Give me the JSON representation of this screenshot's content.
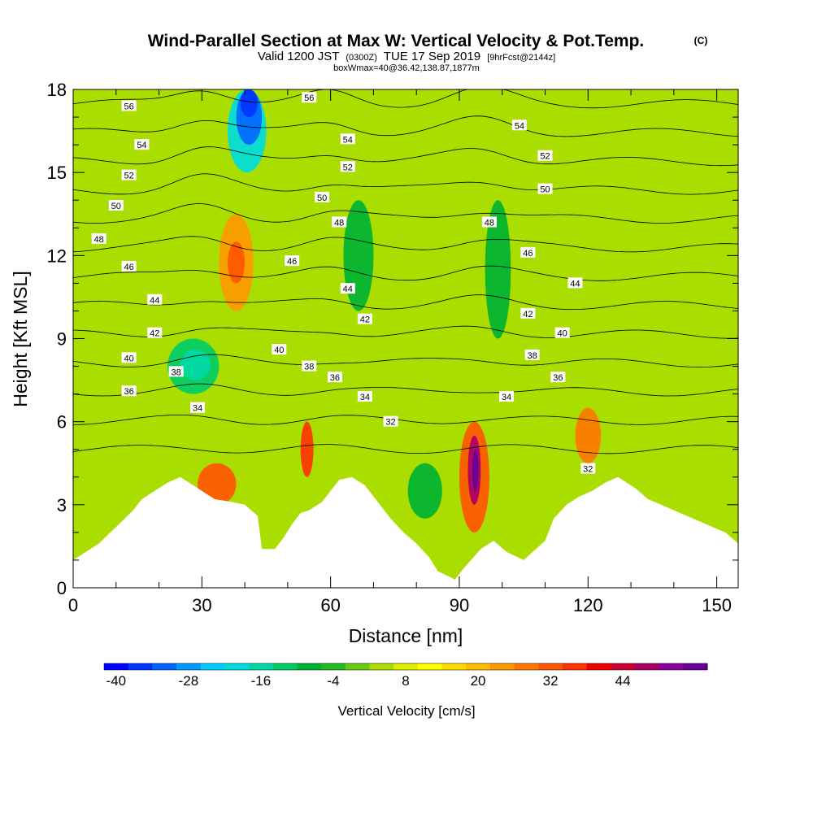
{
  "chart_data": {
    "type": "heatmap",
    "title": "Wind-Parallel Section at Max W: Vertical Velocity & Pot.Temp.",
    "title_tag": "(C)",
    "subtitle": {
      "valid_prefix": "Valid 1200 JST",
      "utc": "(0300Z)",
      "date": "TUE 17 Sep 2019",
      "forecast": "[9hrFcst@2144z]"
    },
    "subtitle2": "boxWmax=40@36.42,138.87,1877m",
    "xlabel": "Distance [nm]",
    "ylabel": "Height [Kft MSL]",
    "xlim": [
      0,
      155
    ],
    "ylim": [
      0,
      18
    ],
    "xticks": [
      0,
      30,
      60,
      90,
      120,
      150
    ],
    "xtick_labels": [
      "0",
      "30",
      "60",
      "90",
      "120",
      "150"
    ],
    "yticks": [
      0,
      3,
      6,
      9,
      12,
      15,
      18
    ],
    "ytick_labels": [
      "0",
      "3",
      "6",
      "9",
      "12",
      "15",
      "18"
    ],
    "colorbar": {
      "label": "Vertical Velocity [cm/s]",
      "tick_labels": [
        "-40",
        "-28",
        "-16",
        "-4",
        "8",
        "20",
        "32",
        "44"
      ],
      "colors": [
        "#0000ff",
        "#0033ff",
        "#0066ff",
        "#0099ff",
        "#00ccff",
        "#00dddd",
        "#00d9a6",
        "#00cc66",
        "#00b233",
        "#22bb22",
        "#66cc11",
        "#aadd00",
        "#ddee00",
        "#ffff00",
        "#ffdd00",
        "#ffbb00",
        "#ff9900",
        "#ff7700",
        "#ff5500",
        "#ff3300",
        "#ee0000",
        "#cc0033",
        "#aa0066",
        "#880099",
        "#660099"
      ]
    },
    "velocity_cells": [
      {
        "x": [
          0,
          155
        ],
        "y": [
          0,
          18
        ],
        "w": 2
      },
      {
        "x": [
          36,
          45
        ],
        "y": [
          15,
          18
        ],
        "w": -20
      },
      {
        "x": [
          38,
          44
        ],
        "y": [
          16,
          18
        ],
        "w": -30
      },
      {
        "x": [
          39,
          43
        ],
        "y": [
          17,
          18
        ],
        "w": -36
      },
      {
        "x": [
          34,
          42
        ],
        "y": [
          10,
          13.5
        ],
        "w": 18
      },
      {
        "x": [
          36,
          40
        ],
        "y": [
          11,
          12.5
        ],
        "w": 26
      },
      {
        "x": [
          22,
          34
        ],
        "y": [
          7,
          9
        ],
        "w": -14
      },
      {
        "x": [
          25,
          32
        ],
        "y": [
          7.5,
          8.6
        ],
        "w": -17
      },
      {
        "x": [
          53,
          56
        ],
        "y": [
          4,
          6
        ],
        "w": 30
      },
      {
        "x": [
          90,
          97
        ],
        "y": [
          2,
          6
        ],
        "w": 24
      },
      {
        "x": [
          92,
          95
        ],
        "y": [
          3,
          5.5
        ],
        "w": 40
      },
      {
        "x": [
          93,
          94.5
        ],
        "y": [
          3.5,
          5
        ],
        "w": 46
      },
      {
        "x": [
          117,
          123
        ],
        "y": [
          4.5,
          6.5
        ],
        "w": 22
      },
      {
        "x": [
          29,
          38
        ],
        "y": [
          3,
          4.5
        ],
        "w": 24
      },
      {
        "x": [
          78,
          86
        ],
        "y": [
          2.5,
          4.5
        ],
        "w": -10
      },
      {
        "x": [
          63,
          70
        ],
        "y": [
          10,
          14
        ],
        "w": -10
      },
      {
        "x": [
          96,
          102
        ],
        "y": [
          9,
          14
        ],
        "w": -10
      }
    ],
    "terrain_height_kft": [
      [
        0,
        1.0
      ],
      [
        3,
        1.3
      ],
      [
        6,
        1.6
      ],
      [
        8,
        1.9
      ],
      [
        10,
        2.2
      ],
      [
        12,
        2.5
      ],
      [
        14,
        2.8
      ],
      [
        16,
        3.2
      ],
      [
        19,
        3.5
      ],
      [
        22,
        3.8
      ],
      [
        25,
        4.0
      ],
      [
        29,
        3.6
      ],
      [
        33,
        3.2
      ],
      [
        37,
        3.1
      ],
      [
        40,
        3.0
      ],
      [
        43,
        2.6
      ],
      [
        44,
        1.4
      ],
      [
        47,
        1.4
      ],
      [
        49,
        1.8
      ],
      [
        51,
        2.3
      ],
      [
        53,
        2.7
      ],
      [
        55,
        2.8
      ],
      [
        58,
        3.1
      ],
      [
        60,
        3.5
      ],
      [
        62,
        3.9
      ],
      [
        65,
        4.0
      ],
      [
        68,
        3.7
      ],
      [
        71,
        3.1
      ],
      [
        74,
        2.5
      ],
      [
        77,
        2.0
      ],
      [
        80,
        1.6
      ],
      [
        83,
        1.1
      ],
      [
        85,
        0.6
      ],
      [
        89,
        0.3
      ],
      [
        91,
        0.7
      ],
      [
        95,
        1.4
      ],
      [
        98,
        1.7
      ],
      [
        101,
        1.3
      ],
      [
        105,
        1.0
      ],
      [
        110,
        1.7
      ],
      [
        112,
        2.5
      ],
      [
        115,
        3.0
      ],
      [
        118,
        3.3
      ],
      [
        121,
        3.5
      ],
      [
        124,
        3.8
      ],
      [
        127,
        4.0
      ],
      [
        131,
        3.6
      ],
      [
        134,
        3.2
      ],
      [
        137,
        3.0
      ],
      [
        140,
        2.8
      ],
      [
        143,
        2.6
      ],
      [
        146,
        2.4
      ],
      [
        149,
        2.2
      ],
      [
        152,
        2.0
      ],
      [
        155,
        1.6
      ]
    ],
    "contour_labels": [
      {
        "text": "56",
        "x": 13,
        "y": 17.4
      },
      {
        "text": "56",
        "x": 55,
        "y": 17.7
      },
      {
        "text": "54",
        "x": 16,
        "y": 16.0
      },
      {
        "text": "54",
        "x": 64,
        "y": 16.2
      },
      {
        "text": "54",
        "x": 104,
        "y": 16.7
      },
      {
        "text": "52",
        "x": 13,
        "y": 14.9
      },
      {
        "text": "52",
        "x": 64,
        "y": 15.2
      },
      {
        "text": "52",
        "x": 110,
        "y": 15.6
      },
      {
        "text": "50",
        "x": 10,
        "y": 13.8
      },
      {
        "text": "50",
        "x": 58,
        "y": 14.1
      },
      {
        "text": "50",
        "x": 110,
        "y": 14.4
      },
      {
        "text": "48",
        "x": 6,
        "y": 12.6
      },
      {
        "text": "48",
        "x": 62,
        "y": 13.2
      },
      {
        "text": "48",
        "x": 97,
        "y": 13.2
      },
      {
        "text": "46",
        "x": 13,
        "y": 11.6
      },
      {
        "text": "46",
        "x": 51,
        "y": 11.8
      },
      {
        "text": "46",
        "x": 106,
        "y": 12.1
      },
      {
        "text": "44",
        "x": 19,
        "y": 10.4
      },
      {
        "text": "44",
        "x": 64,
        "y": 10.8
      },
      {
        "text": "44",
        "x": 117,
        "y": 11.0
      },
      {
        "text": "42",
        "x": 19,
        "y": 9.2
      },
      {
        "text": "42",
        "x": 68,
        "y": 9.7
      },
      {
        "text": "42",
        "x": 106,
        "y": 9.9
      },
      {
        "text": "40",
        "x": 13,
        "y": 8.3
      },
      {
        "text": "40",
        "x": 48,
        "y": 8.6
      },
      {
        "text": "40",
        "x": 114,
        "y": 9.2
      },
      {
        "text": "38",
        "x": 24,
        "y": 7.8
      },
      {
        "text": "38",
        "x": 55,
        "y": 8.0
      },
      {
        "text": "38",
        "x": 107,
        "y": 8.4
      },
      {
        "text": "36",
        "x": 13,
        "y": 7.1
      },
      {
        "text": "36",
        "x": 61,
        "y": 7.6
      },
      {
        "text": "36",
        "x": 113,
        "y": 7.6
      },
      {
        "text": "34",
        "x": 29,
        "y": 6.5
      },
      {
        "text": "34",
        "x": 68,
        "y": 6.9
      },
      {
        "text": "34",
        "x": 101,
        "y": 6.9
      },
      {
        "text": "32",
        "x": 74,
        "y": 6.0
      },
      {
        "text": "32",
        "x": 120,
        "y": 4.3
      }
    ],
    "isentrope_levels": [
      56,
      54,
      52,
      50,
      48,
      46,
      44,
      42,
      40,
      38,
      36,
      34,
      32
    ]
  }
}
